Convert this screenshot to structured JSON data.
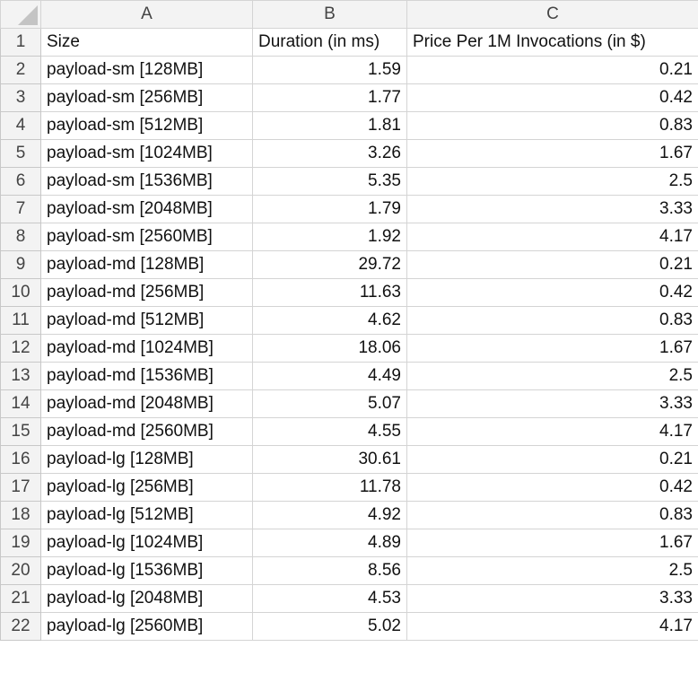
{
  "columns": [
    "A",
    "B",
    "C"
  ],
  "headers": [
    "Size",
    "Duration (in ms)",
    "Price Per 1M Invocations (in $)"
  ],
  "rows": [
    {
      "n": "1"
    },
    {
      "n": "2",
      "size": "payload-sm [128MB]",
      "duration": "1.59",
      "price": "0.21"
    },
    {
      "n": "3",
      "size": "payload-sm [256MB]",
      "duration": "1.77",
      "price": "0.42"
    },
    {
      "n": "4",
      "size": "payload-sm [512MB]",
      "duration": "1.81",
      "price": "0.83"
    },
    {
      "n": "5",
      "size": "payload-sm [1024MB]",
      "duration": "3.26",
      "price": "1.67"
    },
    {
      "n": "6",
      "size": "payload-sm [1536MB]",
      "duration": "5.35",
      "price": "2.5"
    },
    {
      "n": "7",
      "size": "payload-sm [2048MB]",
      "duration": "1.79",
      "price": "3.33"
    },
    {
      "n": "8",
      "size": "payload-sm [2560MB]",
      "duration": "1.92",
      "price": "4.17"
    },
    {
      "n": "9",
      "size": "payload-md [128MB]",
      "duration": "29.72",
      "price": "0.21"
    },
    {
      "n": "10",
      "size": "payload-md [256MB]",
      "duration": "11.63",
      "price": "0.42"
    },
    {
      "n": "11",
      "size": "payload-md [512MB]",
      "duration": "4.62",
      "price": "0.83"
    },
    {
      "n": "12",
      "size": "payload-md [1024MB]",
      "duration": "18.06",
      "price": "1.67"
    },
    {
      "n": "13",
      "size": "payload-md [1536MB]",
      "duration": "4.49",
      "price": "2.5"
    },
    {
      "n": "14",
      "size": "payload-md [2048MB]",
      "duration": "5.07",
      "price": "3.33"
    },
    {
      "n": "15",
      "size": "payload-md [2560MB]",
      "duration": "4.55",
      "price": "4.17"
    },
    {
      "n": "16",
      "size": "payload-lg [128MB]",
      "duration": "30.61",
      "price": "0.21"
    },
    {
      "n": "17",
      "size": "payload-lg [256MB]",
      "duration": "11.78",
      "price": "0.42"
    },
    {
      "n": "18",
      "size": "payload-lg [512MB]",
      "duration": "4.92",
      "price": "0.83"
    },
    {
      "n": "19",
      "size": "payload-lg [1024MB]",
      "duration": "4.89",
      "price": "1.67"
    },
    {
      "n": "20",
      "size": "payload-lg [1536MB]",
      "duration": "8.56",
      "price": "2.5"
    },
    {
      "n": "21",
      "size": "payload-lg [2048MB]",
      "duration": "4.53",
      "price": "3.33"
    },
    {
      "n": "22",
      "size": "payload-lg [2560MB]",
      "duration": "5.02",
      "price": "4.17"
    }
  ],
  "colors": {
    "header_bg": "#f3f3f3",
    "grid_line": "#d4d4d4",
    "text": "#111111"
  }
}
